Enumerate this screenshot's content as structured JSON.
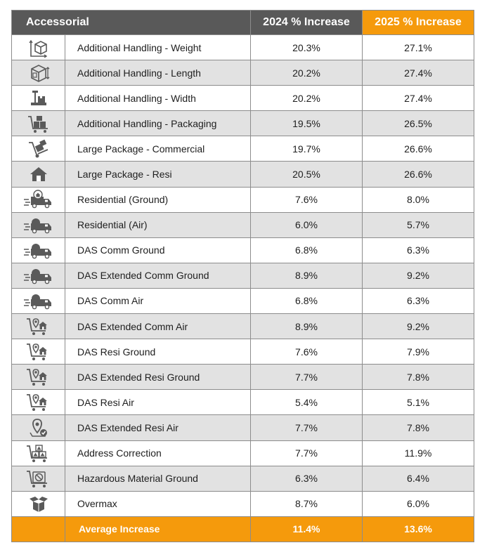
{
  "header": {
    "accessorial": "Accessorial",
    "col_2024": "2024 % Increase",
    "col_2025": "2025 % Increase"
  },
  "rows": [
    {
      "icon": "box-weight-icon",
      "name": "Additional Handling - Weight",
      "y2024": "20.3%",
      "y2025": "27.1%"
    },
    {
      "icon": "box-length-icon",
      "name": "Additional Handling - Length",
      "y2024": "20.2%",
      "y2025": "27.4%"
    },
    {
      "icon": "scale-package-icon",
      "name": "Additional Handling - Width",
      "y2024": "20.2%",
      "y2025": "27.4%"
    },
    {
      "icon": "cart-boxes-icon",
      "name": "Additional Handling - Packaging",
      "y2024": "19.5%",
      "y2025": "26.5%"
    },
    {
      "icon": "hand-truck-icon",
      "name": "Large Package - Commercial",
      "y2024": "19.7%",
      "y2025": "26.6%"
    },
    {
      "icon": "house-icon",
      "name": "Large Package - Resi",
      "y2024": "20.5%",
      "y2025": "26.6%"
    },
    {
      "icon": "delivery-truck-house-icon",
      "name": "Residential (Ground)",
      "y2024": "7.6%",
      "y2025": "8.0%"
    },
    {
      "icon": "delivery-truck-icon",
      "name": "Residential (Air)",
      "y2024": "6.0%",
      "y2025": "5.7%"
    },
    {
      "icon": "delivery-truck-icon",
      "name": "DAS Comm Ground",
      "y2024": "6.8%",
      "y2025": "6.3%"
    },
    {
      "icon": "delivery-truck-icon",
      "name": "DAS Extended Comm Ground",
      "y2024": "8.9%",
      "y2025": "9.2%"
    },
    {
      "icon": "delivery-truck-icon",
      "name": "DAS Comm Air",
      "y2024": "6.8%",
      "y2025": "6.3%"
    },
    {
      "icon": "cart-pin-house-icon",
      "name": "DAS Extended Comm Air",
      "y2024": "8.9%",
      "y2025": "9.2%"
    },
    {
      "icon": "cart-pin-house-icon",
      "name": "DAS Resi Ground",
      "y2024": "7.6%",
      "y2025": "7.9%"
    },
    {
      "icon": "cart-pin-house-icon",
      "name": "DAS Extended Resi Ground",
      "y2024": "7.7%",
      "y2025": "7.8%"
    },
    {
      "icon": "cart-pin-house-icon",
      "name": "DAS Resi Air",
      "y2024": "5.4%",
      "y2025": "5.1%"
    },
    {
      "icon": "location-pin-check-icon",
      "name": "DAS Extended Resi Air",
      "y2024": "7.7%",
      "y2025": "7.8%"
    },
    {
      "icon": "cart-warning-boxes-icon",
      "name": "Address Correction",
      "y2024": "7.7%",
      "y2025": "11.9%"
    },
    {
      "icon": "cart-hazard-icon",
      "name": "Hazardous Material Ground",
      "y2024": "6.3%",
      "y2025": "6.4%"
    },
    {
      "icon": "open-box-icon",
      "name": "Overmax",
      "y2024": "8.7%",
      "y2025": "6.0%"
    }
  ],
  "average": {
    "label": "Average Increase",
    "y2024": "11.4%",
    "y2025": "13.6%"
  },
  "colors": {
    "header_gray": "#595959",
    "accent_orange": "#f59a0c",
    "stripe_gray": "#e2e2e2",
    "icon_gray": "#5a5a5a"
  }
}
